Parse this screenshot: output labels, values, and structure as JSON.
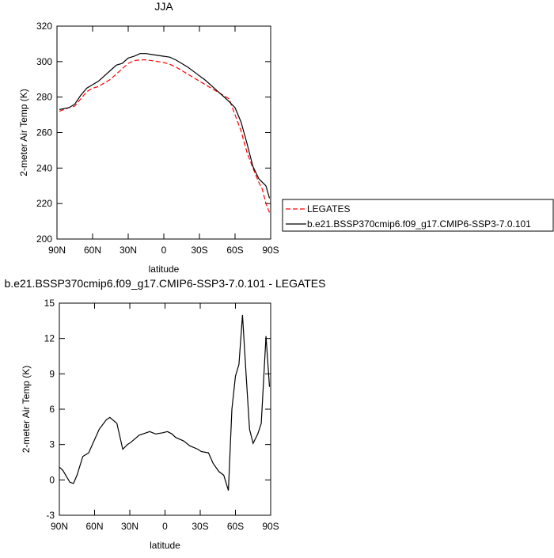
{
  "chart_data": [
    {
      "type": "line",
      "title": "JJA",
      "xlabel": "latitude",
      "ylabel": "2-meter Air Temp (K)",
      "xlim": [
        90,
        -90
      ],
      "ylim": [
        200,
        320
      ],
      "xticks": [
        {
          "value": 90,
          "label": "90N"
        },
        {
          "value": 60,
          "label": "60N"
        },
        {
          "value": 30,
          "label": "30N"
        },
        0,
        {
          "value": -30,
          "label": "30S"
        },
        {
          "value": -60,
          "label": "60S"
        },
        {
          "value": -90,
          "label": "90S"
        }
      ],
      "yticks": [
        200,
        220,
        240,
        260,
        280,
        300,
        320
      ],
      "legend": "right",
      "x": [
        88,
        80,
        75,
        70,
        65,
        60,
        55,
        50,
        45,
        40,
        35,
        30,
        25,
        20,
        15,
        10,
        5,
        0,
        -5,
        -10,
        -15,
        -20,
        -25,
        -30,
        -35,
        -40,
        -45,
        -50,
        -55,
        -60,
        -65,
        -70,
        -75,
        -80,
        -83,
        -86,
        -89
      ],
      "series": [
        {
          "name": "LEGATES",
          "color": "#ff0000",
          "dashed": true,
          "values": [
            272,
            274,
            275,
            279,
            283,
            285,
            286,
            288,
            290,
            293,
            296,
            299,
            300.5,
            301,
            301,
            300.5,
            300,
            299.5,
            298.5,
            297,
            295,
            293,
            291,
            289,
            287,
            285,
            283,
            281,
            279,
            270,
            261,
            249,
            240,
            232,
            228,
            220,
            215
          ]
        },
        {
          "name": "b.e21.BSSP370cmip6.f09_g17.CMIP6-SSP3-7.0.101",
          "color": "#000000",
          "dashed": false,
          "values": [
            273,
            274,
            276,
            281,
            285,
            287,
            289,
            292,
            295,
            298,
            299,
            302,
            303,
            304.5,
            304.5,
            304,
            303.5,
            303,
            302.5,
            301,
            299,
            297,
            294.5,
            292,
            289.5,
            286.5,
            283.5,
            280.5,
            277.5,
            274,
            266,
            254,
            241,
            234,
            232,
            230,
            223
          ]
        }
      ]
    },
    {
      "type": "line",
      "title": "b.e21.BSSP370cmip6.f09_g17.CMIP6-SSP3-7.0.101 - LEGATES",
      "xlabel": "latitude",
      "ylabel": "2-meter Air Temp (K)",
      "xlim": [
        90,
        -90
      ],
      "ylim": [
        -3,
        15
      ],
      "xticks": [
        {
          "value": 90,
          "label": "90N"
        },
        {
          "value": 60,
          "label": "60N"
        },
        {
          "value": 30,
          "label": "30N"
        },
        0,
        {
          "value": -30,
          "label": "30S"
        },
        {
          "value": -60,
          "label": "60S"
        },
        {
          "value": -90,
          "label": "90S"
        }
      ],
      "yticks": [
        -3,
        0,
        3,
        6,
        9,
        12,
        15
      ],
      "x": [
        90,
        87,
        81,
        78,
        75,
        70,
        65,
        61,
        56,
        50,
        47,
        41,
        36,
        32,
        29,
        22,
        16,
        13,
        8,
        2,
        -2,
        -6,
        -9,
        -16,
        -21,
        -28,
        -31,
        -37,
        -41,
        -46,
        -50,
        -54,
        -57,
        -60,
        -63,
        -66,
        -69,
        -72,
        -75,
        -79,
        -82,
        -86,
        -89
      ],
      "series": [
        {
          "color": "#000000",
          "dashed": false,
          "values": [
            1.1,
            0.8,
            -0.2,
            -0.3,
            0.4,
            2.0,
            2.3,
            3.2,
            4.3,
            5.1,
            5.3,
            4.8,
            2.6,
            3.0,
            3.2,
            3.8,
            4.0,
            4.1,
            3.9,
            4.0,
            4.1,
            3.9,
            3.6,
            3.3,
            2.9,
            2.6,
            2.4,
            2.3,
            1.4,
            0.7,
            0.4,
            -0.9,
            6.0,
            8.8,
            9.8,
            14.0,
            9.0,
            4.3,
            3.1,
            3.9,
            4.8,
            12.2,
            7.9
          ]
        }
      ]
    }
  ]
}
